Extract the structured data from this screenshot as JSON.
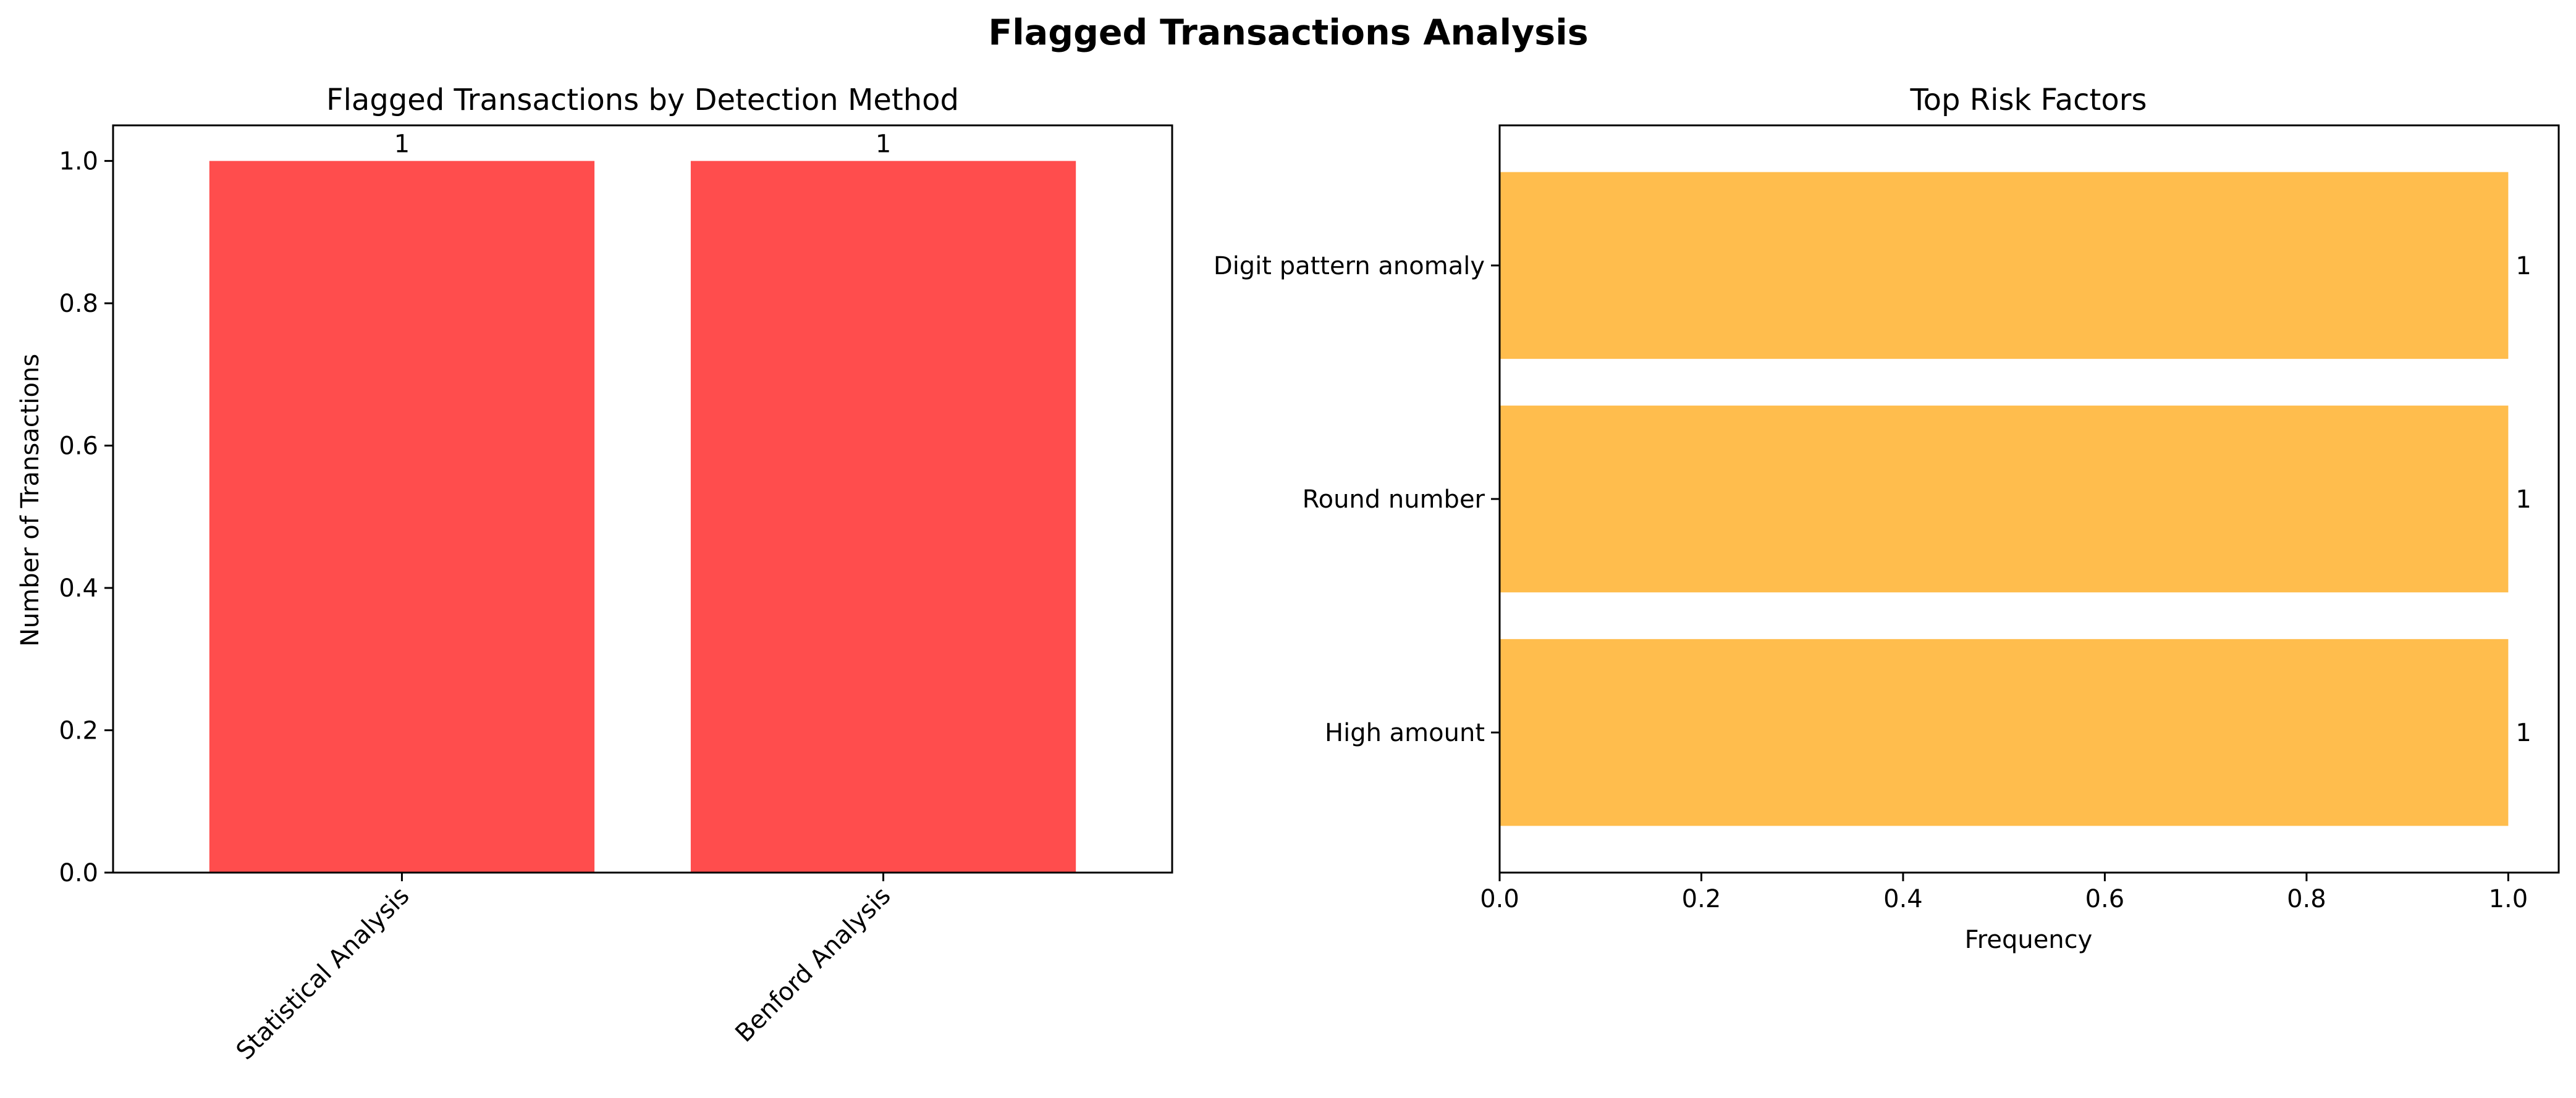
{
  "figure": {
    "title": "Flagged Transactions Analysis"
  },
  "chart_data": [
    {
      "type": "bar",
      "orientation": "vertical",
      "title": "Flagged Transactions by Detection Method",
      "xlabel": "",
      "ylabel": "Number of Transactions",
      "categories": [
        "Statistical Analysis",
        "Benford Analysis"
      ],
      "values": [
        1,
        1
      ],
      "data_labels": [
        "1",
        "1"
      ],
      "ylim": [
        0,
        1.05
      ],
      "yticks": [
        0.0,
        0.2,
        0.4,
        0.6,
        0.8,
        1.0
      ],
      "ytick_labels": [
        "0.0",
        "0.2",
        "0.4",
        "0.6",
        "0.8",
        "1.0"
      ],
      "xtick_rotation": 45,
      "color": "#ff4d4d",
      "grid": false,
      "legend": "none"
    },
    {
      "type": "bar",
      "orientation": "horizontal",
      "title": "Top Risk Factors",
      "xlabel": "Frequency",
      "ylabel": "",
      "categories": [
        "High amount",
        "Round number",
        "Digit pattern anomaly"
      ],
      "values": [
        1,
        1,
        1
      ],
      "data_labels": [
        "1",
        "1",
        "1"
      ],
      "xlim": [
        0,
        1.05
      ],
      "xticks": [
        0.0,
        0.2,
        0.4,
        0.6,
        0.8,
        1.0
      ],
      "xtick_labels": [
        "0.0",
        "0.2",
        "0.4",
        "0.6",
        "0.8",
        "1.0"
      ],
      "color": "#ffbd4d",
      "grid": false,
      "legend": "none"
    }
  ]
}
